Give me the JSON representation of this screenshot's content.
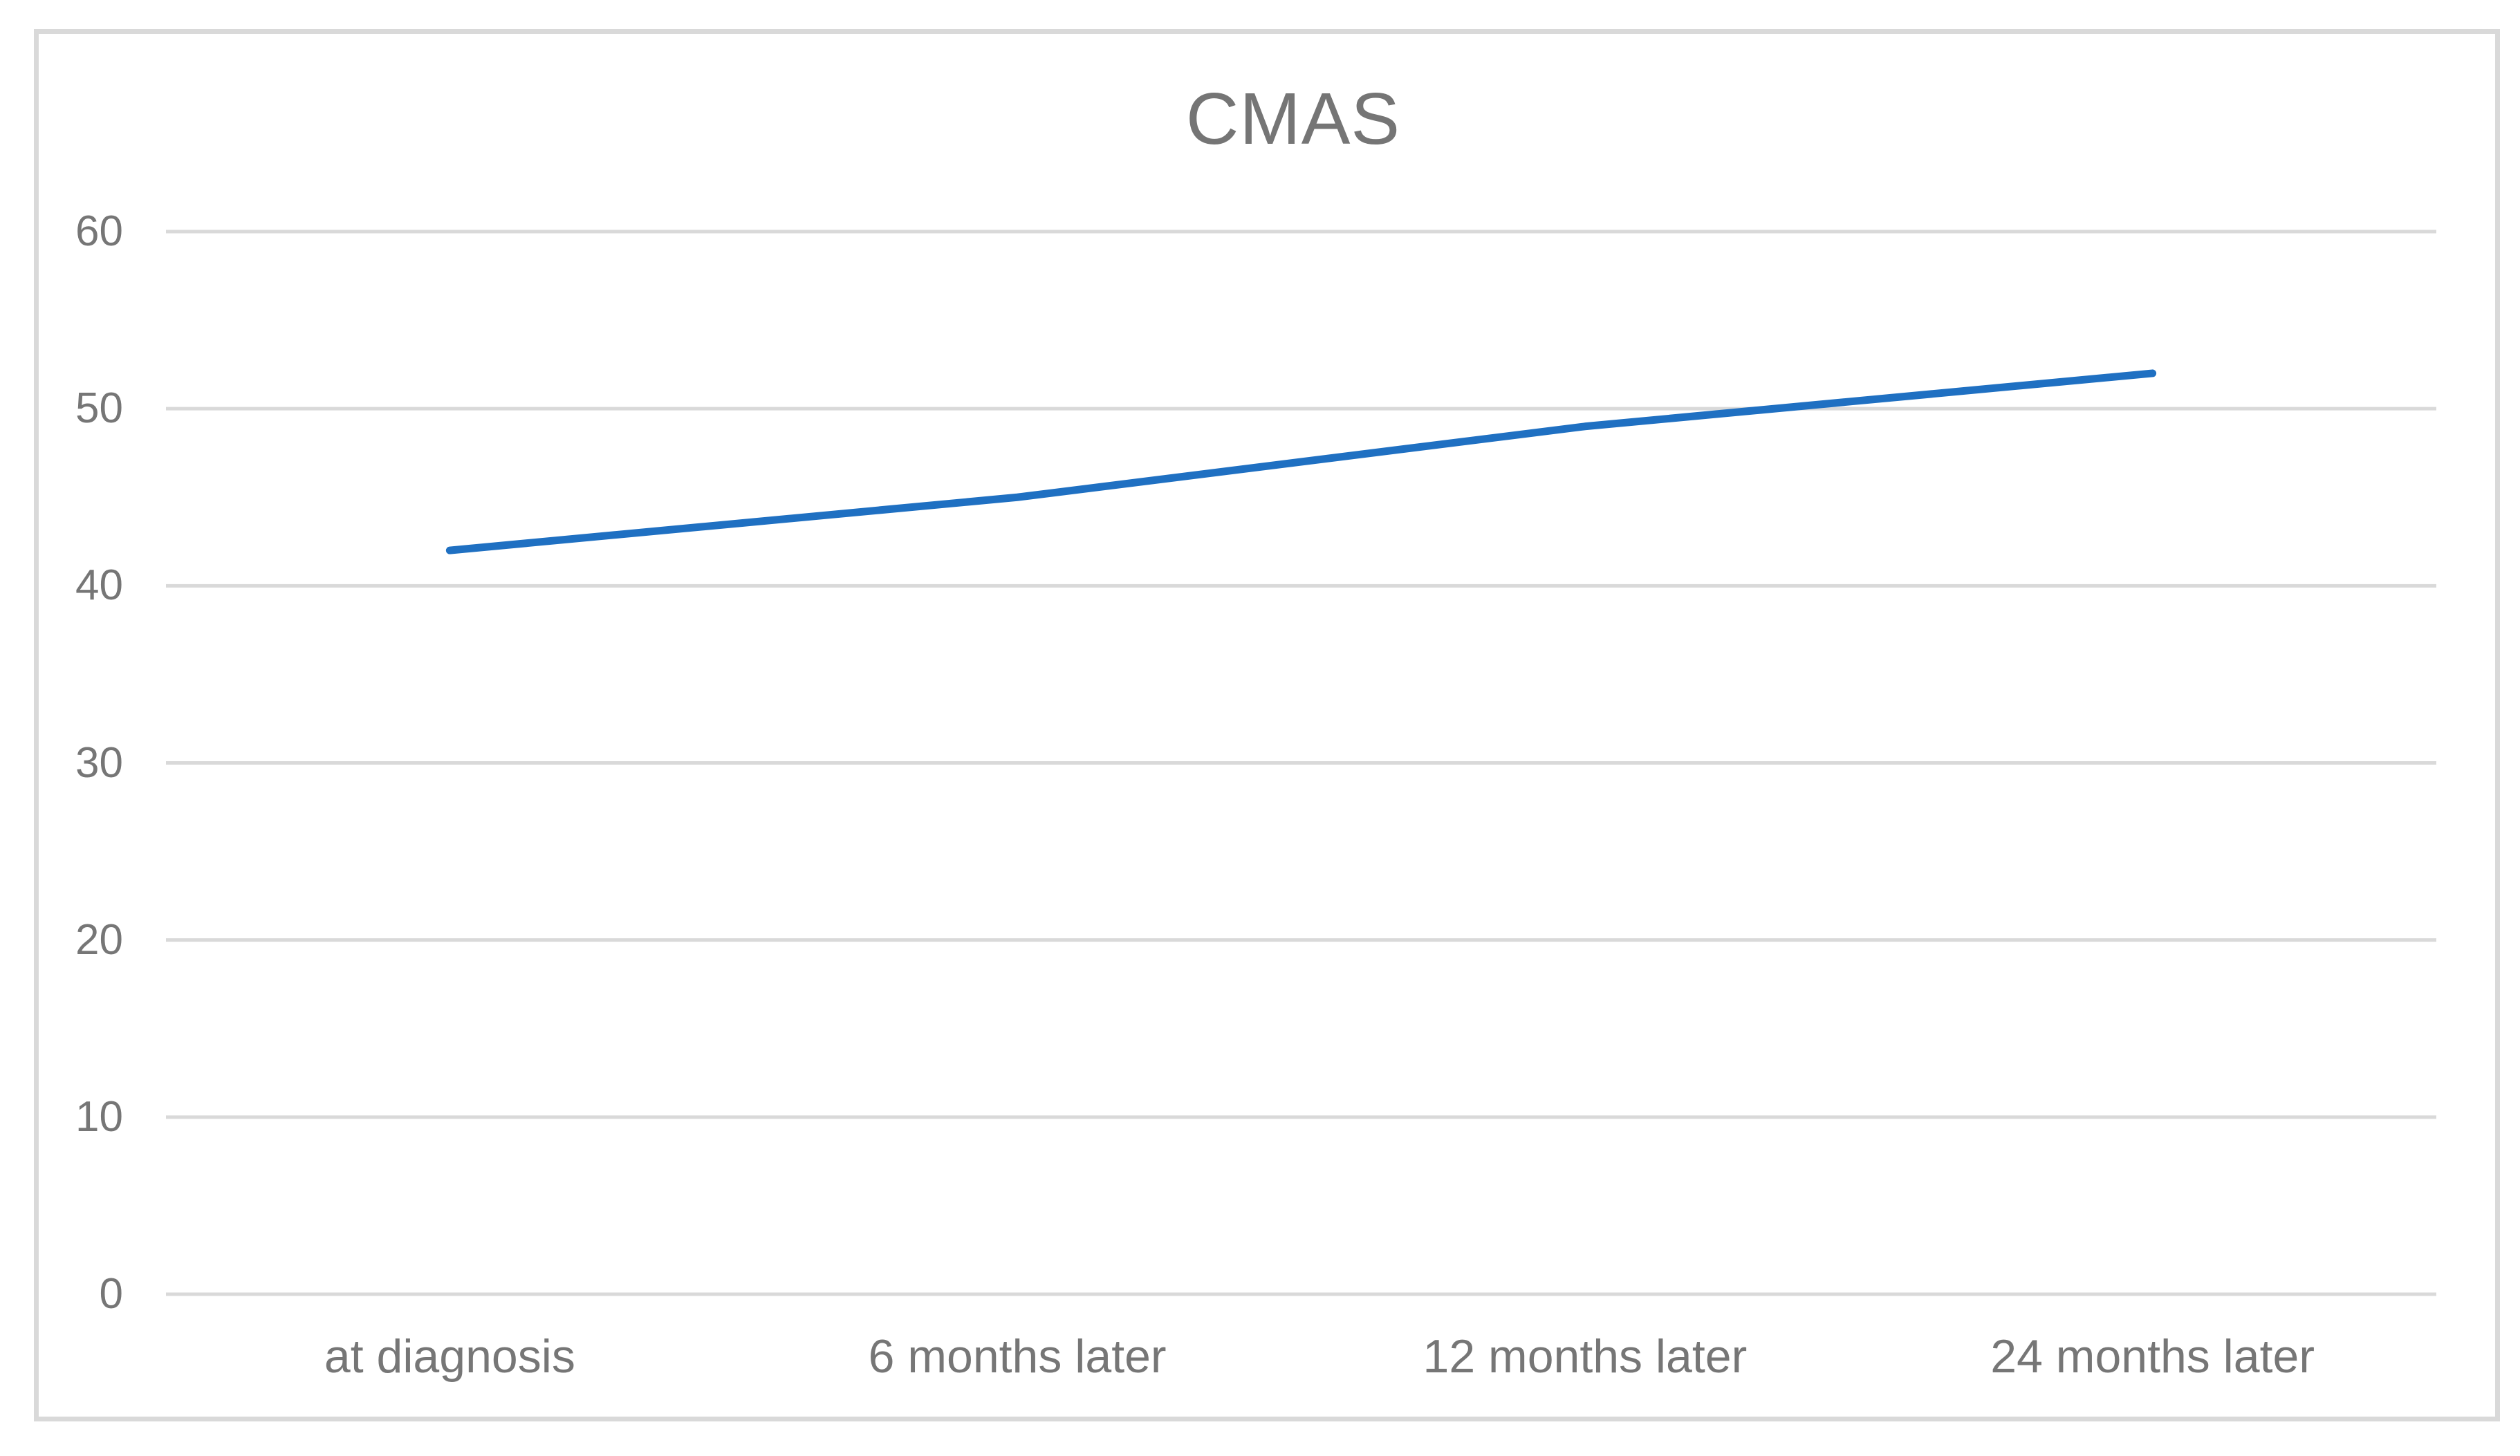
{
  "chart_data": {
    "type": "line",
    "title": "CMAS",
    "categories": [
      "at diagnosis",
      "6 months later",
      "12 months later",
      "24 months later"
    ],
    "series": [
      {
        "name": "CMAS",
        "values": [
          42,
          45,
          49,
          52
        ]
      }
    ],
    "ylim": [
      0,
      60
    ],
    "yticks": [
      0,
      10,
      20,
      30,
      40,
      50,
      60
    ],
    "xlabel": "",
    "ylabel": "",
    "grid": "horizontal-only",
    "legend": "none",
    "colors": {
      "line": "#1f70c2",
      "gridline": "#d9d9d9",
      "frame_border": "#d9d9d9",
      "tick_label": "#767676",
      "title": "#757575",
      "background": "#ffffff"
    }
  }
}
